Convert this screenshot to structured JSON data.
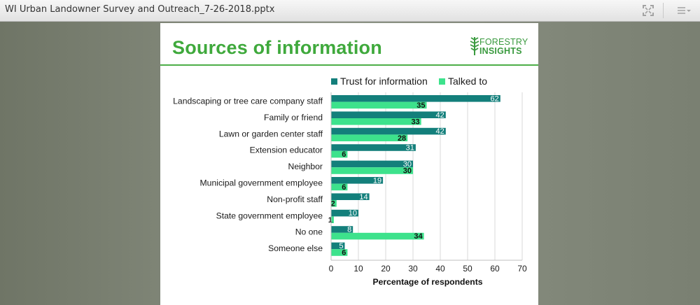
{
  "window": {
    "title": "WI Urban Landowner Survey and Outreach_7-26-2018.pptx",
    "icons": [
      "fullscreen-icon",
      "menu-icon"
    ]
  },
  "slide": {
    "title": "Sources of information",
    "logo": {
      "line1": "FORESTRY",
      "line2": "INSIGHTS"
    }
  },
  "colors": {
    "trust": "#137f7b",
    "talked": "#3de28c",
    "title_green": "#3fa93c"
  },
  "chart_data": {
    "type": "bar",
    "orientation": "horizontal",
    "categories": [
      "Landscaping or tree care company staff",
      "Family or friend",
      "Lawn or garden center staff",
      "Extension educator",
      "Neighbor",
      "Municipal government employee",
      "Non-profit staff",
      "State government employee",
      "No one",
      "Someone else"
    ],
    "series": [
      {
        "name": "Trust for information",
        "values": [
          62,
          42,
          42,
          31,
          30,
          19,
          14,
          10,
          8,
          5
        ]
      },
      {
        "name": "Talked to",
        "values": [
          35,
          33,
          28,
          6,
          30,
          6,
          2,
          1,
          34,
          6
        ]
      }
    ],
    "xlabel": "Percentage of respondents",
    "xlim": [
      0,
      70
    ],
    "xticks": [
      0,
      10,
      20,
      30,
      40,
      50,
      60,
      70
    ],
    "grid": true,
    "legend": "top"
  }
}
